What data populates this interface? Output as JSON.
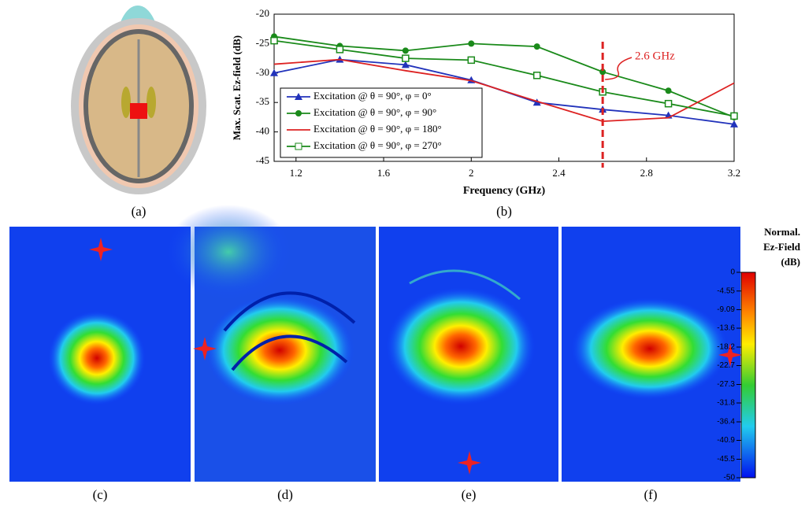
{
  "chart_data": {
    "type": "line",
    "xlabel": "Frequency (GHz)",
    "ylabel": "Max. Scat. Ez-field (dB)",
    "x": [
      1.1,
      1.4,
      1.7,
      2.0,
      2.3,
      2.6,
      2.9,
      3.2
    ],
    "series": [
      {
        "name": "Excitation @ θ = 90°, φ = 0°",
        "color": "#2233bb",
        "marker": "triangle",
        "values": [
          -30,
          -27.7,
          -28.6,
          -31.2,
          -35,
          -36.2,
          -37.2,
          -38.7
        ]
      },
      {
        "name": "Excitation @ θ = 90°, φ = 90°",
        "color": "#1a8a1a",
        "marker": "circle",
        "values": [
          -23.8,
          -25.4,
          -26.2,
          -25,
          -25.5,
          -29.8,
          -33,
          -37.5
        ]
      },
      {
        "name": "Excitation @ θ = 90°, φ = 180°",
        "color": "#dd2222",
        "marker": "none",
        "values": [
          -28.5,
          -27.7,
          -29.6,
          -31.3,
          -34.8,
          -38.2,
          -37.6,
          -31.7
        ]
      },
      {
        "name": "Excitation @ θ = 90°, φ = 270°",
        "color": "#1a8a1a",
        "marker": "square-open",
        "values": [
          -24.5,
          -26,
          -27.5,
          -27.8,
          -30.4,
          -33.2,
          -35.2,
          -37.3
        ]
      }
    ],
    "xlim": [
      1.1,
      3.2
    ],
    "xticks": [
      1.2,
      1.6,
      2.0,
      2.4,
      2.8,
      3.2
    ],
    "ylim": [
      -45,
      -20
    ],
    "yticks": [
      -45,
      -40,
      -35,
      -30,
      -25,
      -20
    ],
    "marker_line": {
      "x": 2.6,
      "label": "2.6 GHz",
      "color": "#dd2222"
    }
  },
  "panel_labels": [
    "(a)",
    "(b)",
    "(c)",
    "(d)",
    "(e)",
    "(f)"
  ],
  "colorbar": {
    "title": [
      "Normal.",
      "Ez-Field",
      "(dB)"
    ],
    "ticks": [
      0,
      -4.55,
      -9.09,
      -13.6,
      -18.2,
      -22.7,
      -27.3,
      -31.8,
      -36.4,
      -40.9,
      -45.5,
      -50
    ],
    "lim": [
      -50,
      0
    ]
  }
}
